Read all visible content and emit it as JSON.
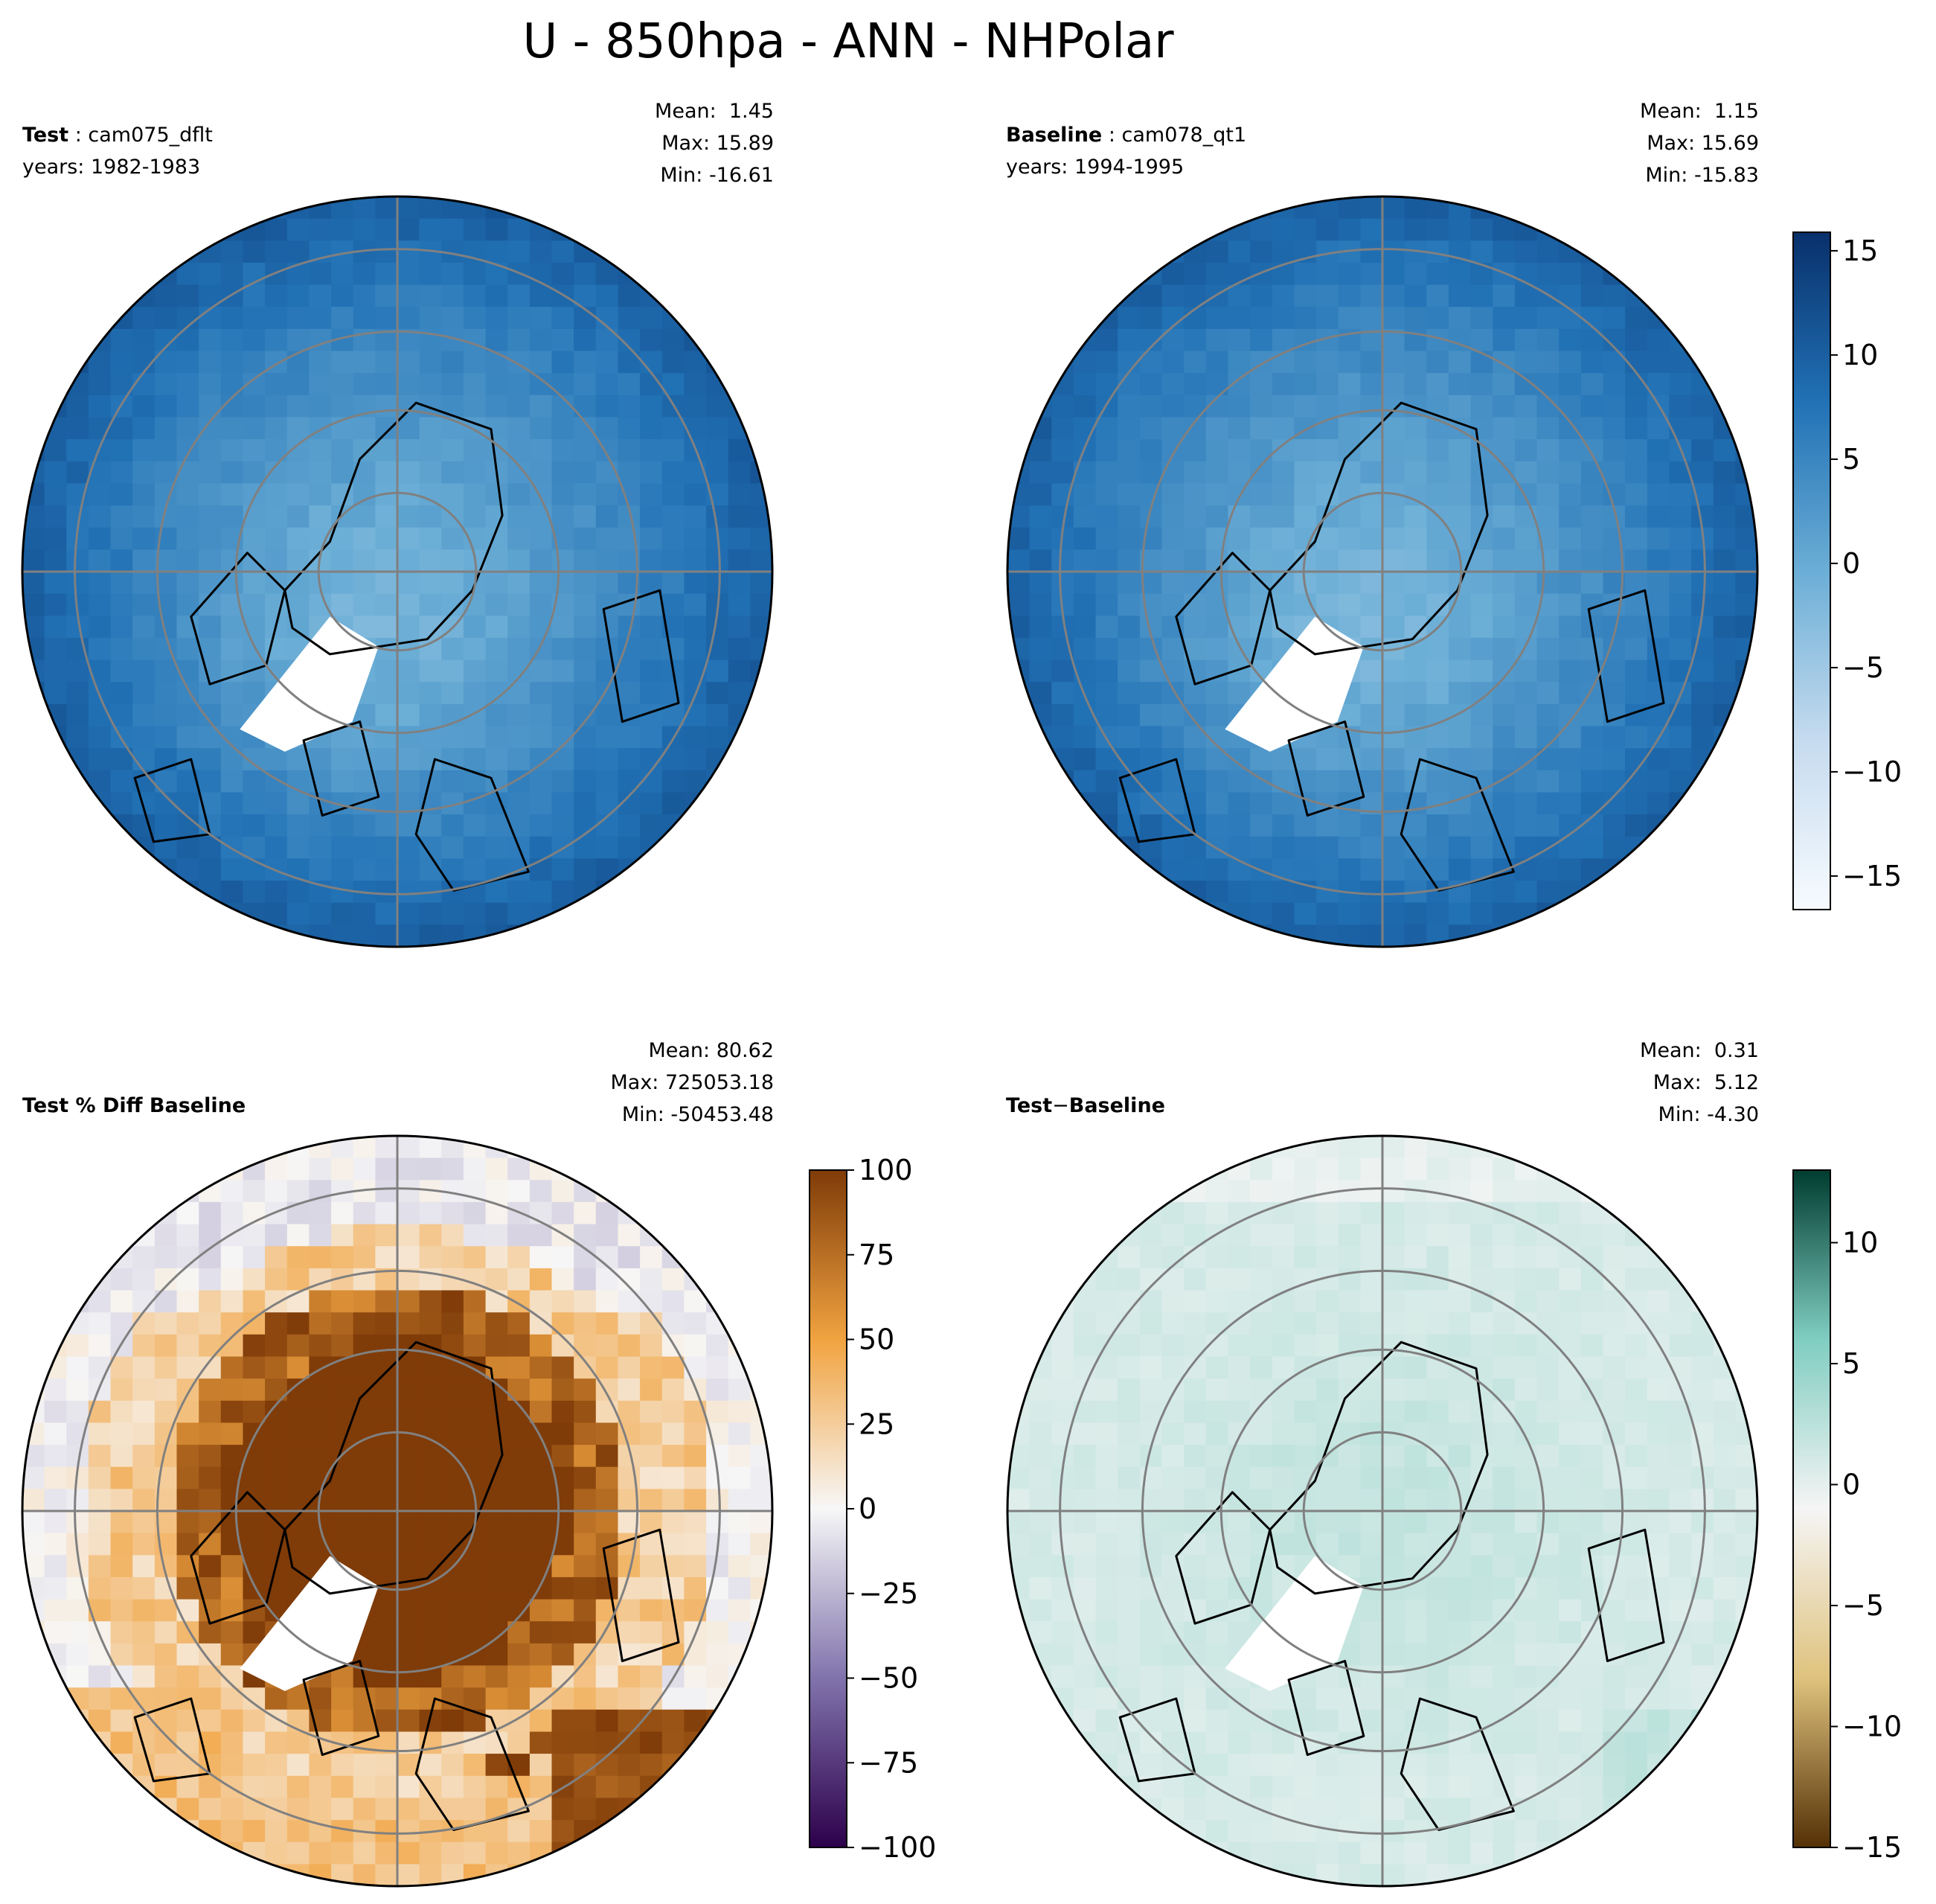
{
  "figure_title": "U - 850hpa - ANN - NHPolar",
  "panels": {
    "test": {
      "label": "Test",
      "name": "cam075_dflt",
      "years": "years: 1982-1983",
      "mean": "Mean:  1.45",
      "max": "Max: 15.89",
      "min": "Min: -16.61"
    },
    "baseline": {
      "label": "Baseline",
      "name": "cam078_qt1",
      "years": "years: 1994-1995",
      "mean": "Mean:  1.15",
      "max": "Max: 15.69",
      "min": "Min: -15.83"
    },
    "pct_diff": {
      "label": "Test % Diff Baseline",
      "mean": "Mean: 80.62",
      "max": "Max: 725053.18",
      "min": "Min: -50453.48"
    },
    "diff": {
      "label": "Test",
      "op": "−",
      "label2": "Baseline",
      "mean": "Mean:  0.31",
      "max": "Max:  5.12",
      "min": "Min: -4.30"
    }
  },
  "chart_data": [
    {
      "type": "heatmap",
      "panel": "test",
      "projection": "north-polar-stereographic",
      "colormap": "Blues",
      "colorbar_shared_with": "baseline"
    },
    {
      "type": "heatmap",
      "panel": "baseline",
      "projection": "north-polar-stereographic",
      "colormap": "Blues",
      "colorbar": {
        "range": [
          -16.61,
          15.89
        ],
        "ticks": [
          15,
          10,
          5,
          0,
          -5,
          -10,
          -15
        ]
      }
    },
    {
      "type": "heatmap",
      "panel": "pct_diff",
      "projection": "north-polar-stereographic",
      "colormap": "PuOr",
      "colorbar": {
        "range": [
          -100,
          100
        ],
        "ticks": [
          100,
          75,
          50,
          25,
          0,
          -25,
          -50,
          -75,
          -100
        ]
      }
    },
    {
      "type": "heatmap",
      "panel": "diff",
      "projection": "north-polar-stereographic",
      "colormap": "BrBG",
      "colorbar": {
        "range": [
          -15,
          13
        ],
        "ticks": [
          10,
          5,
          0,
          -5,
          -10,
          -15
        ]
      }
    }
  ],
  "colors": {
    "blues": [
      "#f7fbff",
      "#c6dbef",
      "#6baed6",
      "#2171b5",
      "#08306b"
    ],
    "puor": [
      "#2d004b",
      "#8073ac",
      "#f7f7f7",
      "#f1a340",
      "#7f3b08"
    ],
    "brbg": [
      "#543005",
      "#dfc27d",
      "#f5f5f5",
      "#80cdc1",
      "#003c30"
    ],
    "gridline": "#808080"
  }
}
